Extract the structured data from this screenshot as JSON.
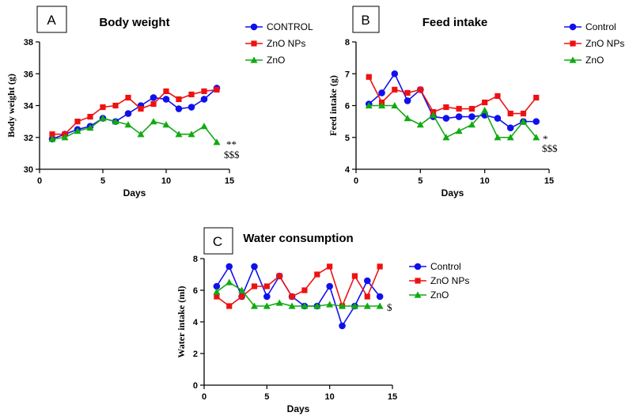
{
  "chart_data": [
    {
      "type": "line",
      "panel_label": "A",
      "title": "Body weight",
      "xlabel": "Days",
      "ylabel": "Body weight (g)",
      "xlim": [
        0,
        15
      ],
      "ylim": [
        30,
        38
      ],
      "xticks": [
        0,
        5,
        10,
        15
      ],
      "yticks": [
        30,
        32,
        34,
        36,
        38
      ],
      "grid": false,
      "legend_position": "right",
      "annotations": [
        "**",
        "$$$"
      ],
      "x": [
        1,
        2,
        3,
        4,
        5,
        6,
        7,
        8,
        9,
        10,
        11,
        12,
        13,
        14
      ],
      "series": [
        {
          "name": "CONTROL",
          "color": "#1010ee",
          "marker": "circle",
          "values": [
            31.9,
            32.2,
            32.5,
            32.7,
            33.2,
            33.0,
            33.5,
            34.0,
            34.5,
            34.4,
            33.8,
            33.9,
            34.4,
            35.1
          ]
        },
        {
          "name": "ZnO NPs",
          "color": "#ee1111",
          "marker": "square",
          "values": [
            32.2,
            32.2,
            33.0,
            33.3,
            33.9,
            34.0,
            34.5,
            33.8,
            34.1,
            34.9,
            34.4,
            34.7,
            34.9,
            35.0
          ]
        },
        {
          "name": "ZnO",
          "color": "#11aa11",
          "marker": "triangle",
          "values": [
            31.9,
            32.0,
            32.4,
            32.6,
            33.2,
            33.0,
            32.8,
            32.2,
            33.0,
            32.8,
            32.2,
            32.2,
            32.7,
            31.7
          ]
        }
      ]
    },
    {
      "type": "line",
      "panel_label": "B",
      "title": "Feed intake",
      "xlabel": "Days",
      "ylabel": "Feed intake (g)",
      "xlim": [
        0,
        15
      ],
      "ylim": [
        4,
        8
      ],
      "xticks": [
        0,
        5,
        10,
        15
      ],
      "yticks": [
        4,
        5,
        6,
        7,
        8
      ],
      "grid": false,
      "legend_position": "right",
      "annotations": [
        "*",
        "$$$"
      ],
      "x": [
        1,
        2,
        3,
        4,
        5,
        6,
        7,
        8,
        9,
        10,
        11,
        12,
        13,
        14
      ],
      "series": [
        {
          "name": "Control",
          "color": "#1010ee",
          "marker": "circle",
          "values": [
            6.05,
            6.4,
            7.0,
            6.15,
            6.5,
            5.65,
            5.6,
            5.65,
            5.65,
            5.7,
            5.6,
            5.3,
            5.5,
            5.5
          ]
        },
        {
          "name": "ZnO NPs",
          "color": "#ee1111",
          "marker": "square",
          "values": [
            6.9,
            6.1,
            6.5,
            6.4,
            6.5,
            5.8,
            5.95,
            5.9,
            5.9,
            6.1,
            6.3,
            5.75,
            5.75,
            6.25
          ]
        },
        {
          "name": "ZnO",
          "color": "#11aa11",
          "marker": "triangle",
          "values": [
            6.0,
            6.0,
            6.0,
            5.6,
            5.4,
            5.7,
            5.0,
            5.2,
            5.4,
            5.85,
            5.0,
            5.0,
            5.5,
            5.0
          ]
        }
      ]
    },
    {
      "type": "line",
      "panel_label": "C",
      "title": "Water consumption",
      "xlabel": "Days",
      "ylabel": "Water intake (ml)",
      "xlim": [
        0,
        15
      ],
      "ylim": [
        0,
        8
      ],
      "xticks": [
        0,
        5,
        10,
        15
      ],
      "yticks": [
        0,
        2,
        4,
        6,
        8
      ],
      "grid": false,
      "legend_position": "right",
      "annotations": [
        "$"
      ],
      "x": [
        1,
        2,
        3,
        4,
        5,
        6,
        7,
        8,
        9,
        10,
        11,
        12,
        13,
        14
      ],
      "series": [
        {
          "name": "Control",
          "color": "#1010ee",
          "marker": "circle",
          "values": [
            6.25,
            7.5,
            5.6,
            7.5,
            5.6,
            6.9,
            5.6,
            5.0,
            5.0,
            6.25,
            3.75,
            5.0,
            6.6,
            5.6
          ]
        },
        {
          "name": "ZnO NPs",
          "color": "#ee1111",
          "marker": "square",
          "values": [
            5.6,
            5.0,
            5.6,
            6.25,
            6.25,
            6.9,
            5.6,
            6.0,
            7.0,
            7.5,
            5.0,
            6.9,
            5.6,
            7.5
          ]
        },
        {
          "name": "ZnO",
          "color": "#11aa11",
          "marker": "triangle",
          "values": [
            5.9,
            6.5,
            6.0,
            5.0,
            5.0,
            5.2,
            5.0,
            5.0,
            5.0,
            5.1,
            5.0,
            5.0,
            5.0,
            5.0
          ]
        }
      ]
    }
  ]
}
